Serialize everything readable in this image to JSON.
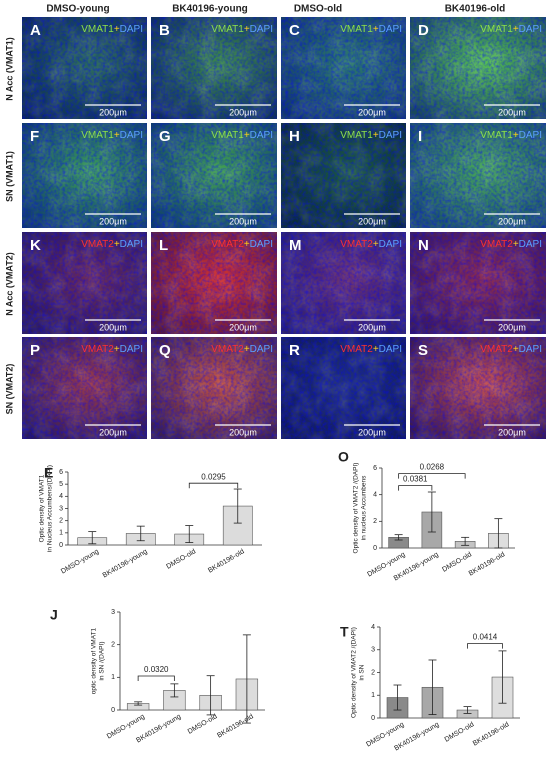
{
  "column_headers": [
    "DMSO-young",
    "BK40196-young",
    "DMSO-old",
    "BK40196-old"
  ],
  "rows": [
    {
      "label": "N Acc (VMAT1)",
      "stain": [
        "VMAT1",
        "+",
        "DAPI"
      ],
      "panels": [
        {
          "letter": "A",
          "scale": "200μm"
        },
        {
          "letter": "B",
          "scale": "200μm"
        },
        {
          "letter": "C",
          "scale": "200μm"
        },
        {
          "letter": "D",
          "scale": "200μm"
        }
      ]
    },
    {
      "label": "SN (VMAT1)",
      "stain": [
        "VMAT1",
        "+",
        "DAPI"
      ],
      "panels": [
        {
          "letter": "F",
          "scale": "200μm"
        },
        {
          "letter": "G",
          "scale": "200μm"
        },
        {
          "letter": "H",
          "scale": "200μm"
        },
        {
          "letter": "I",
          "scale": "200μm"
        }
      ]
    },
    {
      "label": "N Acc (VMAT2)",
      "stain": [
        "VMAT2",
        "+",
        "DAPI"
      ],
      "panels": [
        {
          "letter": "K",
          "scale": "200μm"
        },
        {
          "letter": "L",
          "scale": "200μm"
        },
        {
          "letter": "M",
          "scale": "200μm"
        },
        {
          "letter": "N",
          "scale": "200μm"
        }
      ]
    },
    {
      "label": "SN (VMAT2)",
      "stain": [
        "VMAT2",
        "+",
        "DAPI"
      ],
      "panels": [
        {
          "letter": "P",
          "scale": "200μm"
        },
        {
          "letter": "Q",
          "scale": "200μm"
        },
        {
          "letter": "R",
          "scale": "200μm"
        },
        {
          "letter": "S",
          "scale": "200μm"
        }
      ]
    }
  ],
  "chart_data": [
    {
      "type": "bar",
      "panel": "E",
      "ylabel": [
        "Optic density of VMAT1",
        "in Nucleus Accumbens/(DAPI)"
      ],
      "categories": [
        "DMSO-young",
        "BK40196-young",
        "DMSO-old",
        "BK40196-old"
      ],
      "values": [
        0.6,
        0.95,
        0.9,
        3.2
      ],
      "errors": [
        0.5,
        0.6,
        0.7,
        1.4
      ],
      "colors": [
        "#dcdcdc",
        "#dcdcdc",
        "#dcdcdc",
        "#dcdcdc"
      ],
      "ylim": [
        0,
        6
      ],
      "yticks": [
        0,
        1,
        2,
        3,
        4,
        5,
        6
      ],
      "annotations": [
        {
          "text": "0.0295",
          "pair": [
            "DMSO-old",
            "BK40196-old"
          ]
        }
      ]
    },
    {
      "type": "bar",
      "panel": "O",
      "ylabel": [
        "Optic density of VMAT2 /(DAPI)",
        "in nucleus Accumbens"
      ],
      "categories": [
        "DMSO-young",
        "BK40196-young",
        "DMSO-old",
        "BK40196-old"
      ],
      "values": [
        0.8,
        2.7,
        0.5,
        1.1
      ],
      "errors": [
        0.2,
        1.5,
        0.3,
        1.1
      ],
      "colors": [
        "#8a8a8a",
        "#a8a8a8",
        "#c4c4c4",
        "#dedede"
      ],
      "ylim": [
        0,
        6
      ],
      "yticks": [
        0,
        2,
        4,
        6
      ],
      "annotations": [
        {
          "text": "0.0381",
          "pair": [
            "DMSO-young",
            "BK40196-young"
          ]
        },
        {
          "text": "0.0268",
          "pair": [
            "DMSO-young",
            "DMSO-old"
          ]
        }
      ]
    },
    {
      "type": "bar",
      "panel": "J",
      "ylabel": [
        "optic density of VMAT1",
        "in SN /(DAPI)"
      ],
      "categories": [
        "DMSO-young",
        "BK40196-young",
        "DMSO-old",
        "BK40196-old"
      ],
      "values": [
        0.2,
        0.6,
        0.45,
        0.95
      ],
      "errors": [
        0.05,
        0.2,
        0.6,
        1.35
      ],
      "colors": [
        "#dcdcdc",
        "#dcdcdc",
        "#dcdcdc",
        "#dcdcdc"
      ],
      "ylim": [
        0,
        3
      ],
      "yticks": [
        0,
        1,
        2,
        3
      ],
      "annotations": [
        {
          "text": "0.0320",
          "pair": [
            "DMSO-young",
            "BK40196-young"
          ]
        }
      ]
    },
    {
      "type": "bar",
      "panel": "T",
      "ylabel": [
        "Optic density of VMAT2 /(DAPI)",
        "in SN"
      ],
      "categories": [
        "DMSO-young",
        "BK40196-young",
        "DMSO-old",
        "BK40196-old"
      ],
      "values": [
        0.9,
        1.35,
        0.35,
        1.8
      ],
      "errors": [
        0.55,
        1.2,
        0.15,
        1.15
      ],
      "colors": [
        "#8a8a8a",
        "#a8a8a8",
        "#c4c4c4",
        "#dedede"
      ],
      "ylim": [
        0,
        4
      ],
      "yticks": [
        0,
        1,
        2,
        3,
        4
      ],
      "annotations": [
        {
          "text": "0.0414",
          "pair": [
            "DMSO-old",
            "BK40196-old"
          ]
        }
      ]
    }
  ]
}
